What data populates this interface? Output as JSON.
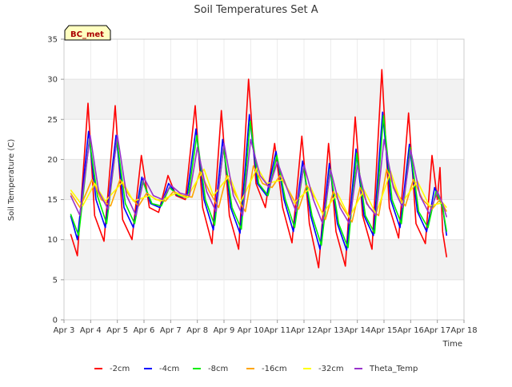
{
  "chart_data": {
    "type": "line",
    "title": "Soil Temperatures Set A",
    "xlabel": "Time",
    "ylabel": "Soil Temperature (C)",
    "xlim": [
      3,
      18
    ],
    "ylim": [
      0,
      35
    ],
    "x_ticks": [
      3,
      4,
      5,
      6,
      7,
      8,
      9,
      10,
      11,
      12,
      13,
      14,
      15,
      16,
      17,
      18
    ],
    "x_tick_labels": [
      "Apr 3",
      "Apr 4",
      "Apr 5",
      "Apr 6",
      "Apr 7",
      "Apr 8",
      "Apr 9",
      "Apr 10",
      "Apr 11",
      "Apr 12",
      "Apr 13",
      "Apr 14",
      "Apr 15",
      "Apr 16",
      "Apr 17",
      "Apr 18"
    ],
    "y_ticks": [
      0,
      5,
      10,
      15,
      20,
      25,
      30,
      35
    ],
    "grid": "horizontal bands",
    "legend": "bottom",
    "station_label": "BC_met",
    "colors": {
      "-2cm": "#ff0000",
      "-4cm": "#0000ff",
      "-8cm": "#00ee00",
      "-16cm": "#ffa500",
      "-32cm": "#ffff00",
      "Theta_Temp": "#9932cc"
    },
    "series": [
      {
        "name": "-2cm",
        "x": [
          3.25,
          3.5,
          3.9,
          4.15,
          4.5,
          4.92,
          5.2,
          5.55,
          5.9,
          6.2,
          6.55,
          6.9,
          7.2,
          7.55,
          7.92,
          8.2,
          8.55,
          8.9,
          9.2,
          9.55,
          9.92,
          10.2,
          10.55,
          10.9,
          11.2,
          11.55,
          11.92,
          12.2,
          12.55,
          12.92,
          13.2,
          13.55,
          13.92,
          14.2,
          14.55,
          14.92,
          15.2,
          15.55,
          15.92,
          16.2,
          16.55,
          16.8,
          17.0,
          17.1,
          17.2,
          17.35
        ],
        "y": [
          10.7,
          8.0,
          27.0,
          13.0,
          9.8,
          26.7,
          12.5,
          10.0,
          20.5,
          14.0,
          13.4,
          18.0,
          15.5,
          15.0,
          26.7,
          14.0,
          9.5,
          26.1,
          13.0,
          8.8,
          30.0,
          17.0,
          14.0,
          22.0,
          14.0,
          9.6,
          22.9,
          12.0,
          6.5,
          22.0,
          11.0,
          6.7,
          25.3,
          13.0,
          8.8,
          31.2,
          14.0,
          10.2,
          25.8,
          12.0,
          9.5,
          20.5,
          15.0,
          19.0,
          11.0,
          7.8
        ]
      },
      {
        "name": "-4cm",
        "x": [
          3.25,
          3.5,
          3.92,
          4.2,
          4.55,
          4.95,
          5.25,
          5.6,
          5.92,
          6.25,
          6.6,
          6.92,
          7.25,
          7.6,
          7.95,
          8.25,
          8.6,
          8.95,
          9.25,
          9.6,
          9.95,
          10.25,
          10.6,
          10.95,
          11.25,
          11.6,
          11.95,
          12.25,
          12.6,
          12.95,
          13.25,
          13.6,
          13.95,
          14.25,
          14.6,
          14.95,
          15.25,
          15.6,
          15.95,
          16.25,
          16.6,
          16.9,
          17.2,
          17.35
        ],
        "y": [
          13.0,
          10.0,
          23.5,
          15.0,
          11.5,
          23.0,
          14.0,
          11.5,
          17.8,
          14.5,
          14.0,
          17.0,
          15.5,
          15.2,
          23.8,
          15.0,
          11.2,
          22.5,
          14.0,
          10.8,
          25.6,
          17.0,
          15.5,
          21.0,
          15.0,
          11.0,
          19.8,
          13.0,
          8.8,
          19.5,
          12.0,
          8.7,
          21.3,
          13.0,
          10.5,
          25.9,
          15.0,
          11.5,
          21.9,
          13.5,
          11.0,
          16.5,
          14.0,
          10.5
        ]
      },
      {
        "name": "-8cm",
        "x": [
          3.25,
          3.55,
          3.95,
          4.25,
          4.6,
          4.98,
          5.3,
          5.65,
          5.95,
          6.3,
          6.65,
          6.95,
          7.3,
          7.65,
          7.98,
          8.3,
          8.65,
          8.98,
          9.3,
          9.65,
          9.98,
          10.3,
          10.65,
          10.98,
          11.3,
          11.65,
          11.98,
          12.3,
          12.65,
          12.98,
          13.3,
          13.65,
          13.98,
          14.3,
          14.65,
          14.98,
          15.3,
          15.65,
          15.98,
          16.3,
          16.65,
          16.95,
          17.2,
          17.35
        ],
        "y": [
          13.2,
          10.5,
          22.5,
          15.5,
          12.0,
          22.5,
          14.5,
          12.0,
          17.3,
          14.5,
          14.2,
          16.5,
          15.5,
          15.3,
          23.0,
          15.0,
          11.8,
          21.5,
          14.0,
          11.3,
          24.8,
          17.0,
          15.5,
          20.5,
          15.0,
          11.5,
          19.0,
          13.0,
          9.3,
          18.8,
          12.0,
          9.0,
          20.8,
          13.0,
          10.8,
          25.5,
          15.0,
          12.0,
          21.5,
          13.5,
          11.5,
          16.0,
          14.0,
          11.0
        ]
      },
      {
        "name": "-16cm",
        "x": [
          3.25,
          3.6,
          4.05,
          4.4,
          4.75,
          5.1,
          5.45,
          5.8,
          6.1,
          6.45,
          6.8,
          7.1,
          7.45,
          7.8,
          8.1,
          8.45,
          8.8,
          9.1,
          9.45,
          9.8,
          10.1,
          10.45,
          10.8,
          11.1,
          11.45,
          11.8,
          12.1,
          12.45,
          12.8,
          13.1,
          13.45,
          13.8,
          14.1,
          14.45,
          14.8,
          15.1,
          15.45,
          15.8,
          16.1,
          16.45,
          16.8,
          17.1,
          17.35
        ],
        "y": [
          15.8,
          14.0,
          17.5,
          15.0,
          14.2,
          17.5,
          15.5,
          14.2,
          15.8,
          15.0,
          14.8,
          16.0,
          15.5,
          15.3,
          18.5,
          16.0,
          14.0,
          18.0,
          15.5,
          13.5,
          19.2,
          17.0,
          16.5,
          18.0,
          16.0,
          13.8,
          16.8,
          15.0,
          12.5,
          16.0,
          14.0,
          12.2,
          16.5,
          14.0,
          13.0,
          18.8,
          16.0,
          14.2,
          17.5,
          15.0,
          13.8,
          15.0,
          13.5
        ]
      },
      {
        "name": "-32cm",
        "x": [
          3.25,
          3.7,
          4.15,
          4.55,
          5.2,
          5.6,
          6.2,
          6.6,
          7.2,
          7.6,
          8.25,
          8.6,
          9.2,
          9.6,
          10.25,
          10.6,
          11.25,
          11.6,
          12.25,
          12.7,
          13.25,
          13.7,
          14.25,
          14.7,
          15.25,
          15.65,
          16.25,
          16.7,
          17.2,
          17.35
        ],
        "y": [
          16.2,
          14.2,
          17.0,
          14.8,
          17.2,
          14.8,
          15.5,
          14.8,
          15.8,
          15.2,
          18.8,
          15.5,
          18.0,
          14.5,
          19.0,
          17.0,
          17.5,
          14.5,
          16.5,
          13.2,
          15.8,
          12.8,
          16.2,
          13.2,
          18.5,
          14.5,
          17.3,
          14.2,
          14.6,
          14.0
        ]
      },
      {
        "name": "Theta_Temp",
        "x": [
          3.25,
          3.6,
          3.98,
          4.3,
          4.65,
          5.0,
          5.35,
          5.7,
          6.0,
          6.35,
          6.7,
          7.0,
          7.35,
          7.7,
          8.0,
          8.35,
          8.7,
          9.0,
          9.35,
          9.7,
          10.0,
          10.35,
          10.7,
          11.0,
          11.35,
          11.7,
          12.0,
          12.35,
          12.7,
          13.0,
          13.35,
          13.7,
          14.0,
          14.35,
          14.7,
          15.0,
          15.35,
          15.7,
          16.0,
          16.35,
          16.7,
          17.0,
          17.2,
          17.35
        ],
        "y": [
          15.5,
          13.0,
          23.0,
          16.0,
          13.8,
          23.0,
          15.5,
          13.0,
          17.7,
          15.5,
          15.0,
          16.8,
          15.8,
          15.5,
          21.5,
          16.0,
          13.5,
          22.0,
          15.5,
          13.0,
          22.5,
          18.0,
          16.5,
          19.7,
          16.5,
          13.5,
          19.3,
          15.0,
          12.0,
          18.7,
          14.0,
          12.0,
          19.3,
          14.5,
          13.0,
          22.5,
          16.5,
          14.0,
          21.2,
          15.5,
          13.2,
          16.0,
          14.5,
          12.8
        ]
      }
    ]
  }
}
